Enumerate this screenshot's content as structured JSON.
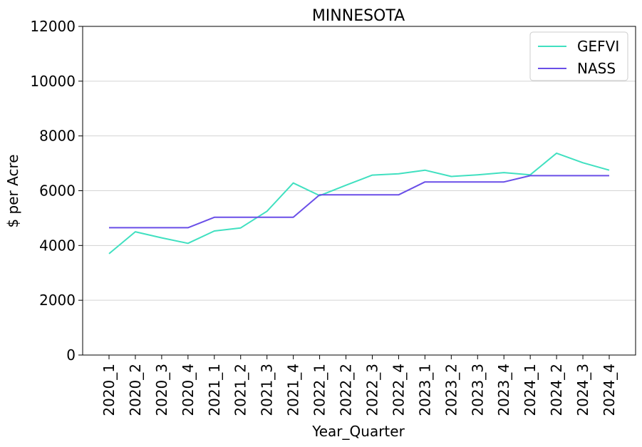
{
  "chart_data": {
    "type": "line",
    "title": "MINNESOTA",
    "xlabel": "Year_Quarter",
    "ylabel": "$ per Acre",
    "ylim": [
      0,
      12000
    ],
    "yticks": [
      0,
      2000,
      4000,
      6000,
      8000,
      10000,
      12000
    ],
    "grid": "horizontal",
    "legend": "top-right",
    "categories": [
      "2020_1",
      "2020_2",
      "2020_3",
      "2020_4",
      "2021_1",
      "2021_2",
      "2021_3",
      "2021_4",
      "2022_1",
      "2022_2",
      "2022_3",
      "2022_4",
      "2023_1",
      "2023_2",
      "2023_3",
      "2023_4",
      "2024_1",
      "2024_2",
      "2024_3",
      "2024_4"
    ],
    "series": [
      {
        "name": "GEFVI",
        "color": "#40e0c0",
        "values": [
          3700,
          4500,
          4280,
          4080,
          4530,
          4640,
          5250,
          6280,
          5820,
          6200,
          6570,
          6620,
          6750,
          6520,
          6580,
          6660,
          6580,
          7370,
          7020,
          6750
        ]
      },
      {
        "name": "NASS",
        "color": "#6a4fe8",
        "values": [
          4650,
          4650,
          4650,
          4650,
          5030,
          5030,
          5030,
          5030,
          5850,
          5850,
          5850,
          5850,
          6320,
          6320,
          6320,
          6320,
          6550,
          6550,
          6550,
          6550
        ]
      }
    ]
  }
}
